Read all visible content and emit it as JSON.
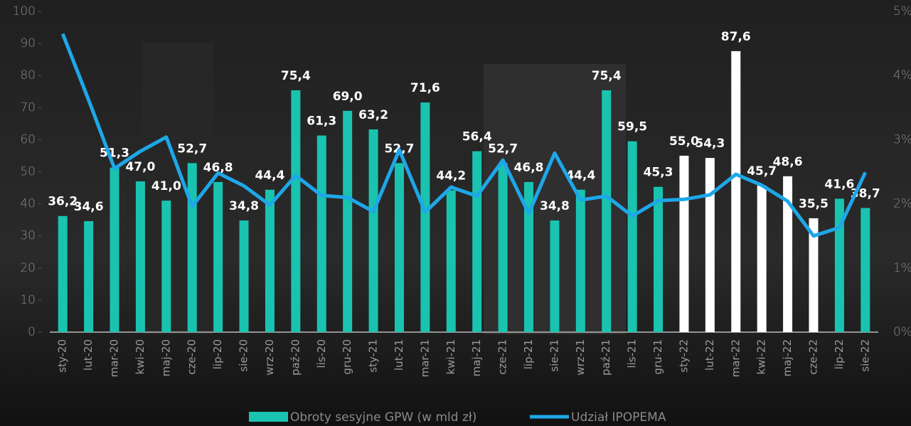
{
  "chart_data": {
    "type": "bar_line",
    "categories": [
      "sty-20",
      "lut-20",
      "mar-20",
      "kwi-20",
      "maj-20",
      "cze-20",
      "lip-20",
      "sie-20",
      "wrz-20",
      "paź-20",
      "lis-20",
      "gru-20",
      "sty-21",
      "lut-21",
      "mar-21",
      "kwi-21",
      "maj-21",
      "cze-21",
      "lip-21",
      "sie-21",
      "wrz-21",
      "paź-21",
      "lis-21",
      "gru-21",
      "sty-22",
      "lut-22",
      "mar-22",
      "kwi-22",
      "maj-22",
      "cze-22",
      "lip-22",
      "sie-22"
    ],
    "series": [
      {
        "name": "Obroty sesyjne GPW (w mld zł)",
        "type": "bar",
        "color": "#19c3b0",
        "colors": [
          "#19c3b0",
          "#19c3b0",
          "#19c3b0",
          "#19c3b0",
          "#19c3b0",
          "#19c3b0",
          "#19c3b0",
          "#19c3b0",
          "#19c3b0",
          "#19c3b0",
          "#19c3b0",
          "#19c3b0",
          "#19c3b0",
          "#19c3b0",
          "#19c3b0",
          "#19c3b0",
          "#19c3b0",
          "#19c3b0",
          "#19c3b0",
          "#19c3b0",
          "#19c3b0",
          "#19c3b0",
          "#19c3b0",
          "#19c3b0",
          "#ffffff",
          "#ffffff",
          "#ffffff",
          "#ffffff",
          "#ffffff",
          "#ffffff",
          "#19c3b0",
          "#19c3b0"
        ],
        "values": [
          36.2,
          34.6,
          51.3,
          47.0,
          41.0,
          52.7,
          46.8,
          34.8,
          44.4,
          75.4,
          61.3,
          69.0,
          63.2,
          52.7,
          71.6,
          44.2,
          56.4,
          52.7,
          46.8,
          34.8,
          44.4,
          75.4,
          59.5,
          45.3,
          55.0,
          54.3,
          87.6,
          45.7,
          48.6,
          35.5,
          41.6,
          38.7
        ],
        "value_labels": [
          "36,2",
          "34,6",
          "51,3",
          "47,0",
          "41,0",
          "52,7",
          "46,8",
          "34,8",
          "44,4",
          "75,4",
          "61,3",
          "69,0",
          "63,2",
          "52,7",
          "71,6",
          "44,2",
          "56,4",
          "52,7",
          "46,8",
          "34,8",
          "44,4",
          "75,4",
          "59,5",
          "45,3",
          "55,0",
          "54,3",
          "87,6",
          "45,7",
          "48,6",
          "35,5",
          "41,6",
          "38,7"
        ]
      },
      {
        "name": "Udział IPOPEMA",
        "type": "line",
        "axis": "y2",
        "color": "#1ea7e8",
        "values": [
          4.65,
          3.62,
          2.55,
          2.82,
          3.04,
          1.96,
          2.48,
          2.28,
          1.98,
          2.44,
          2.13,
          2.1,
          1.88,
          2.84,
          1.87,
          2.26,
          2.12,
          2.68,
          1.85,
          2.79,
          2.06,
          2.12,
          1.81,
          2.05,
          2.07,
          2.14,
          2.46,
          2.29,
          2.04,
          1.5,
          1.63,
          2.49
        ]
      }
    ],
    "ylim": [
      0,
      100
    ],
    "yticks": [
      0,
      10,
      20,
      30,
      40,
      50,
      60,
      70,
      80,
      90,
      100
    ],
    "y2lim": [
      0,
      5
    ],
    "y2ticks": [
      {
        "value": 0,
        "label": "0%"
      },
      {
        "value": 1,
        "label": "1%"
      },
      {
        "value": 2,
        "label": "2%"
      },
      {
        "value": 3,
        "label": "3%"
      },
      {
        "value": 4,
        "label": "4%"
      },
      {
        "value": 5,
        "label": "5%"
      }
    ],
    "legend": "bottom"
  }
}
